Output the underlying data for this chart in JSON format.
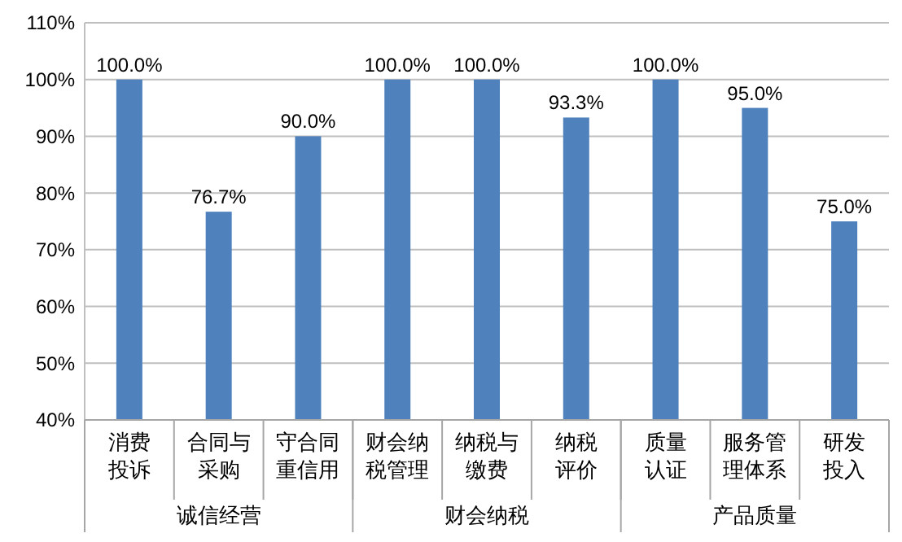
{
  "chart_data": {
    "type": "bar",
    "categories": [
      "消费投诉",
      "合同与采购",
      "守合同重信用",
      "财会纳税管理",
      "纳税与缴费",
      "纳税评价",
      "质量认证",
      "服务管理体系",
      "研发投入"
    ],
    "values": [
      100,
      76.7,
      90,
      100,
      100,
      93.3,
      100,
      95,
      75
    ],
    "color": "#4f81bd",
    "value_labels": [
      "100.0%",
      "76.7%",
      "90.0%",
      "100.0%",
      "100.0%",
      "93.3%",
      "100.0%",
      "95.0%",
      "75.0%"
    ],
    "ylim": [
      40,
      110
    ],
    "yticks": [
      {
        "value": 40,
        "label": "40%"
      },
      {
        "value": 50,
        "label": "50%"
      },
      {
        "value": 60,
        "label": "60%"
      },
      {
        "value": 70,
        "label": "70%"
      },
      {
        "value": 80,
        "label": "80%"
      },
      {
        "value": 90,
        "label": "90%"
      },
      {
        "value": 100,
        "label": "100%"
      },
      {
        "value": 110,
        "label": "110%"
      }
    ],
    "grid": "y",
    "annotations": [
      "诚信经营",
      "财会纳税",
      "产品质量"
    ]
  }
}
